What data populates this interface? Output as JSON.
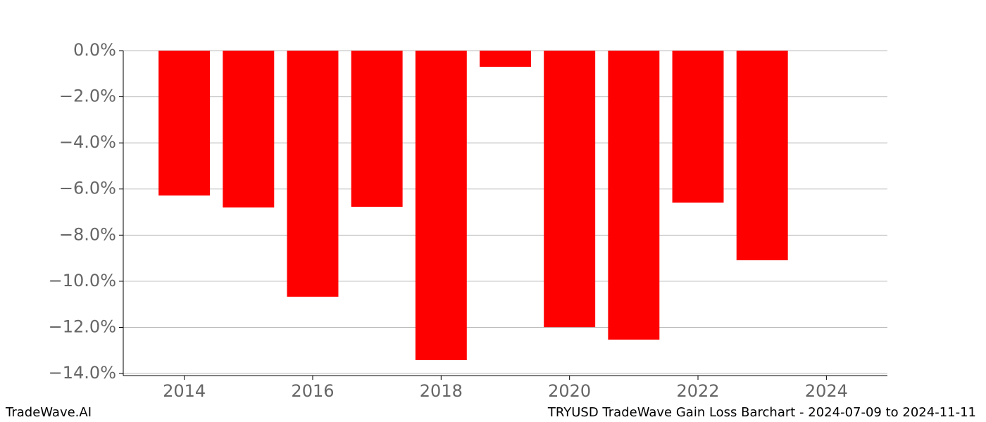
{
  "chart_data": {
    "type": "bar",
    "x": [
      2014,
      2015,
      2016,
      2017,
      2018,
      2019,
      2020,
      2021,
      2022,
      2023
    ],
    "values": [
      -6.28,
      -6.8,
      -10.67,
      -6.77,
      -13.42,
      -0.7,
      -11.99,
      -12.53,
      -6.59,
      -9.09
    ],
    "color": "#ff0000",
    "xlim": [
      2013.05,
      2024.95
    ],
    "xticks": [
      2014,
      2016,
      2018,
      2020,
      2022,
      2024
    ],
    "ylim": [
      -14.09,
      0
    ],
    "yticks": [
      {
        "value": 0,
        "label": "0.0%"
      },
      {
        "value": -2,
        "label": "−2.0%"
      },
      {
        "value": -4,
        "label": "−4.0%"
      },
      {
        "value": -6,
        "label": "−6.0%"
      },
      {
        "value": -8,
        "label": "−8.0%"
      },
      {
        "value": -10,
        "label": "−10.0%"
      },
      {
        "value": -12,
        "label": "−12.0%"
      },
      {
        "value": -14,
        "label": "−14.0%"
      }
    ],
    "grid": true,
    "watermark": "TradeWave.AI",
    "caption": "TRYUSD TradeWave Gain Loss Barchart - 2024-07-09 to 2024-11-11"
  }
}
